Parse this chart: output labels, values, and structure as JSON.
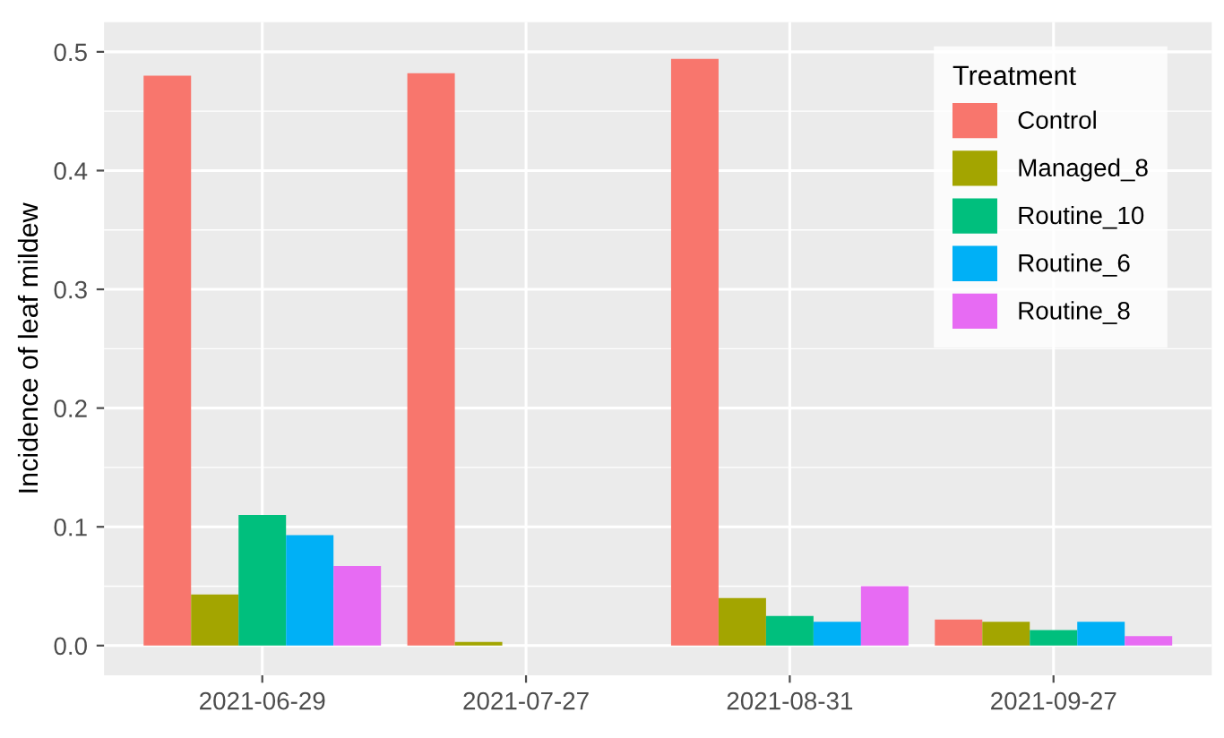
{
  "chart_data": {
    "type": "bar",
    "ylabel": "Incidence of leaf mildew",
    "legend_title": "Treatment",
    "categories": [
      "2021-06-29",
      "2021-07-27",
      "2021-08-31",
      "2021-09-27"
    ],
    "series": [
      {
        "name": "Control",
        "color": "#f8766d",
        "values": [
          0.48,
          0.482,
          0.494,
          0.022
        ]
      },
      {
        "name": "Managed_8",
        "color": "#a3a500",
        "values": [
          0.043,
          0.003,
          0.04,
          0.02
        ]
      },
      {
        "name": "Routine_10",
        "color": "#00bf7d",
        "values": [
          0.11,
          null,
          0.025,
          0.013
        ]
      },
      {
        "name": "Routine_6",
        "color": "#00b0f6",
        "values": [
          0.093,
          null,
          0.02,
          0.02
        ]
      },
      {
        "name": "Routine_8",
        "color": "#e76bf3",
        "values": [
          0.067,
          null,
          0.05,
          0.008
        ]
      }
    ],
    "ylim": [
      -0.025,
      0.525
    ],
    "yticks": [
      {
        "value": 0,
        "label": "0.0"
      },
      0.1,
      0.2,
      0.3,
      0.4,
      0.5
    ],
    "grid": true,
    "legend": "top right"
  }
}
